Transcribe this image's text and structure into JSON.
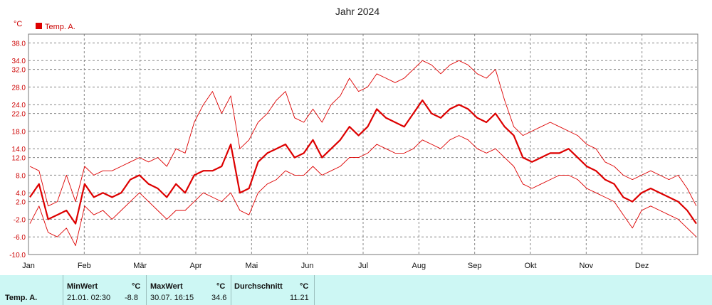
{
  "chart_data": {
    "type": "line",
    "title": "Jahr 2024",
    "ylabel": "°C",
    "ylim": [
      -10,
      40
    ],
    "yticks": [
      -10.0,
      -6.0,
      -2.0,
      2.0,
      4.0,
      8.0,
      12.0,
      14.0,
      18.0,
      22.0,
      24.0,
      28.0,
      32.0,
      34.0,
      38.0
    ],
    "ytick_labels": [
      "-10.0",
      "-6.0",
      "-2.0",
      "2.0",
      "4.0",
      "8.0",
      "12.0",
      "14.0",
      "18.0",
      "22.0",
      "24.0",
      "28.0",
      "32.0",
      "34.0",
      "38.0"
    ],
    "x_labels": [
      "Jan",
      "Feb",
      "Mär",
      "Apr",
      "Mai",
      "Jun",
      "Jul",
      "Aug",
      "Sep",
      "Okt",
      "Nov",
      "Dez"
    ],
    "legend": [
      "Temp. A."
    ],
    "legend_position": "top-left",
    "grid": true,
    "series_color": "#dd0000",
    "x_unit": "week of 2024",
    "series": [
      {
        "name": "Temp. A.",
        "role": "mean",
        "values": [
          3,
          6,
          -2,
          -1,
          0,
          -3,
          6,
          3,
          4,
          3,
          4,
          7,
          8,
          6,
          5,
          3,
          6,
          4,
          8,
          9,
          9,
          10,
          15,
          4,
          5,
          11,
          13,
          14,
          15,
          12,
          13,
          16,
          12,
          14,
          16,
          19,
          17,
          19,
          23,
          21,
          20,
          19,
          22,
          25,
          22,
          21,
          23,
          24,
          23,
          21,
          20,
          22,
          19,
          17,
          12,
          11,
          12,
          13,
          13,
          14,
          12,
          10,
          9,
          7,
          6,
          3,
          2,
          4,
          5,
          4,
          3,
          2,
          0,
          -3
        ]
      },
      {
        "role": "max",
        "values": [
          10,
          9,
          1,
          2,
          8,
          2,
          10,
          8,
          9,
          9,
          10,
          11,
          12,
          11,
          12,
          10,
          14,
          13,
          20,
          24,
          27,
          22,
          26,
          14,
          16,
          20,
          22,
          25,
          27,
          21,
          20,
          23,
          20,
          24,
          26,
          30,
          27,
          28,
          31,
          30,
          29,
          30,
          32,
          34,
          33,
          31,
          33,
          34,
          33,
          31,
          30,
          32,
          25,
          19,
          17,
          18,
          19,
          20,
          19,
          18,
          17,
          15,
          14,
          11,
          10,
          8,
          7,
          8,
          9,
          8,
          7,
          8,
          5,
          1
        ]
      },
      {
        "role": "min",
        "values": [
          -3,
          1,
          -5,
          -6,
          -4,
          -8,
          1,
          -1,
          0,
          -2,
          0,
          2,
          4,
          2,
          0,
          -2,
          0,
          0,
          2,
          4,
          3,
          2,
          4,
          0,
          -1,
          4,
          6,
          7,
          9,
          8,
          8,
          10,
          8,
          9,
          10,
          12,
          12,
          13,
          15,
          14,
          13,
          13,
          14,
          16,
          15,
          14,
          16,
          17,
          16,
          14,
          13,
          14,
          12,
          10,
          6,
          5,
          6,
          7,
          8,
          8,
          7,
          5,
          4,
          3,
          2,
          -1,
          -4,
          0,
          1,
          0,
          -1,
          -2,
          -4,
          -6
        ]
      }
    ]
  },
  "stats": {
    "row_label": "Temp. A.",
    "min_header": "MinWert",
    "min_unit": "°C",
    "min_time": "21.01.  02:30",
    "min_value": "-8.8",
    "max_header": "MaxWert",
    "max_unit": "°C",
    "max_time": "30.07.  16:15",
    "max_value": "34.6",
    "avg_header": "Durchschnitt",
    "avg_unit": "°C",
    "avg_value": "11.21"
  }
}
